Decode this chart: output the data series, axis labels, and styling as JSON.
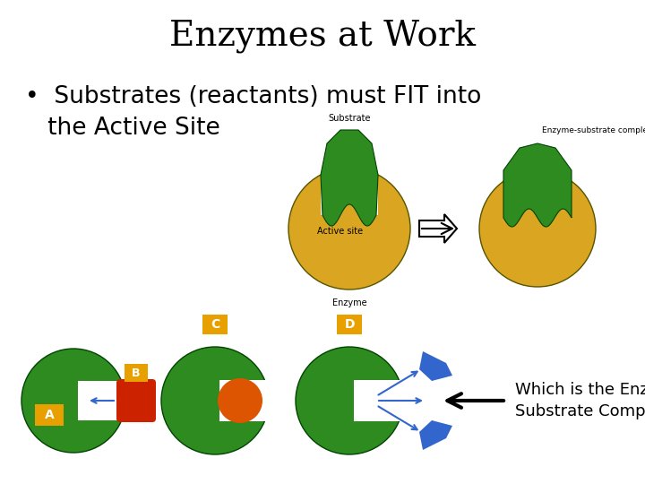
{
  "title": "Enzymes at Work",
  "title_fontsize": 28,
  "bg_color": "#ffffff",
  "text_color": "#000000",
  "bullet_text": "•  Substrates (reactants) must FIT into\n   the Active Site",
  "bullet_fontsize": 19,
  "label_C": "C",
  "label_D": "D",
  "label_A": "A",
  "label_B": "B",
  "label_box_color": "#E8A000",
  "enzyme_green": "#2E8B20",
  "enzyme_yellow": "#DAA520",
  "orange_blob": "#CC4400",
  "blue_sub": "#3366CC",
  "active_site_label": "Active site",
  "substrate_label": "Substrate",
  "enzyme_label": "Enzyme",
  "complex_label": "Enzyme-substrate complex",
  "question_text": "Which is the Enzyme\nSubstrate Complex?",
  "question_fontsize": 13,
  "enzyme_outline": "#333300"
}
